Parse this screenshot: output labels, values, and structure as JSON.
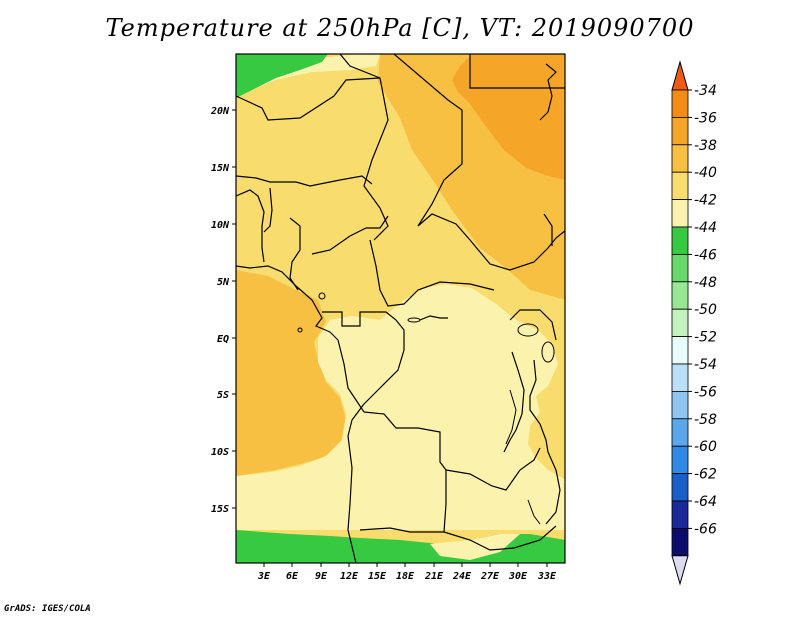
{
  "title": "Temperature at 250hPa [C], VT: 2019090700",
  "footer": "GrADS: IGES/COLA",
  "map": {
    "lon_ticks": [
      "3E",
      "6E",
      "9E",
      "12E",
      "15E",
      "18E",
      "21E",
      "24E",
      "27E",
      "30E",
      "33E"
    ],
    "lat_ticks": [
      "20N",
      "15N",
      "10N",
      "5N",
      "EQ",
      "5S",
      "10S",
      "15S"
    ]
  },
  "colorbar": {
    "labels": [
      "-34",
      "-36",
      "-38",
      "-40",
      "-42",
      "-44",
      "-46",
      "-48",
      "-50",
      "-52",
      "-54",
      "-56",
      "-58",
      "-60",
      "-62",
      "-64",
      "-66"
    ],
    "colors": [
      "#f05a14",
      "#f28c14",
      "#f5a528",
      "#f7c043",
      "#f9dc6e",
      "#fbf3ad",
      "#36c941",
      "#66d968",
      "#97e692",
      "#c4f2bd",
      "#e8fafa",
      "#bbdff7",
      "#8fc6f0",
      "#5aa8ea",
      "#2f88e3",
      "#1a5fc7",
      "#1c2a99",
      "#0c0c6a",
      "#dcdcf0"
    ]
  },
  "colors": {
    "lightest_yellow": "#fbf3ad",
    "light_yellow": "#f9dc6e",
    "yellow_orange": "#f7c043",
    "orange": "#f5a528",
    "green": "#36c941"
  }
}
